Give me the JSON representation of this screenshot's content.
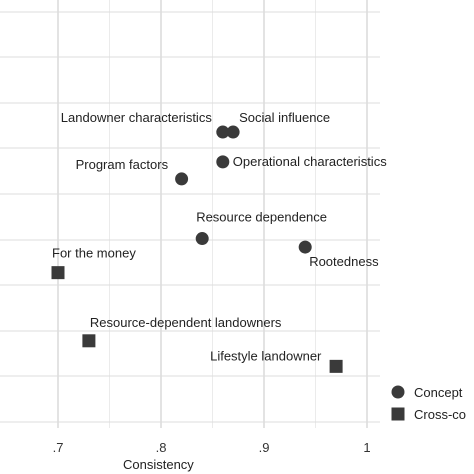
{
  "chart_data": {
    "type": "scatter",
    "xlabel": "Consistency",
    "ylabel": "",
    "title": "",
    "xlim": [
      0.7,
      1.0
    ],
    "x_ticks": [
      {
        "value": 0.7,
        "label": ".7"
      },
      {
        "value": 0.8,
        "label": ".8"
      },
      {
        "value": 0.9,
        "label": ".9"
      },
      {
        "value": 1.0,
        "label": "1"
      }
    ],
    "ylim": [
      0,
      1
    ],
    "grid": true,
    "legend_placement": "bottom-right",
    "series": [
      {
        "name": "Concept",
        "marker": "circle",
        "color": "#3a3a3a",
        "points": [
          {
            "x": 0.86,
            "y": 0.69,
            "label": "Landowner characteristics"
          },
          {
            "x": 0.87,
            "y": 0.69,
            "label": "Social influence"
          },
          {
            "x": 0.86,
            "y": 0.62,
            "label": "Operational characteristics"
          },
          {
            "x": 0.82,
            "y": 0.58,
            "label": "Program factors"
          },
          {
            "x": 0.84,
            "y": 0.44,
            "label": "Resource dependence"
          },
          {
            "x": 0.94,
            "y": 0.42,
            "label": "Rootedness"
          }
        ]
      },
      {
        "name": "Cross-co",
        "marker": "square",
        "color": "#3a3a3a",
        "points": [
          {
            "x": 0.7,
            "y": 0.36,
            "label": "For the money"
          },
          {
            "x": 0.73,
            "y": 0.2,
            "label": "Resource-dependent landowners"
          },
          {
            "x": 0.97,
            "y": 0.14,
            "label": "Lifestyle landowner"
          }
        ]
      }
    ]
  }
}
